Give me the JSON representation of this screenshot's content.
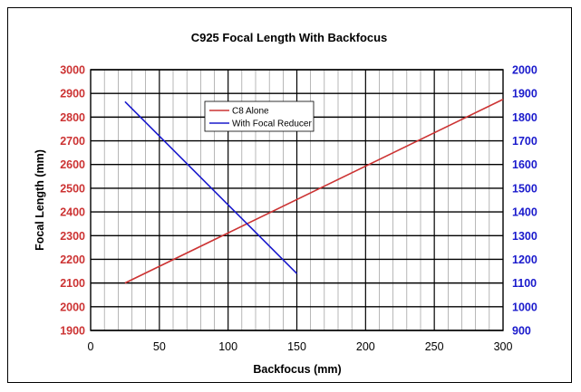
{
  "chart_data": {
    "type": "line",
    "title": "C925 Focal Length With Backfocus",
    "xlabel": "Backfocus (mm)",
    "ylabel": "Focal Length (mm)",
    "xlim": [
      0,
      300
    ],
    "ylim": [
      1900,
      3000
    ],
    "y2lim": [
      900,
      2000
    ],
    "x_ticks": [
      "0",
      "50",
      "100",
      "150",
      "200",
      "250",
      "300"
    ],
    "y_ticks": [
      "1900",
      "2000",
      "2100",
      "2200",
      "2300",
      "2400",
      "2500",
      "2600",
      "2700",
      "2800",
      "2900",
      "3000"
    ],
    "y2_ticks": [
      "900",
      "1000",
      "1100",
      "1200",
      "1300",
      "1400",
      "1500",
      "1600",
      "1700",
      "1800",
      "1900",
      "2000"
    ],
    "grid": true,
    "legend_position": "top-center",
    "colors": {
      "left_axis": "#cc3333",
      "right_axis": "#1a1acc",
      "frame": "#000000"
    },
    "series": [
      {
        "name": "C8 Alone",
        "axis": "left",
        "color": "#cc3333",
        "x": [
          25,
          300
        ],
        "y": [
          2100,
          2875
        ]
      },
      {
        "name": "With Focal Reducer",
        "axis": "right",
        "color": "#1a1acc",
        "x": [
          25,
          150
        ],
        "y": [
          1865,
          1140
        ]
      }
    ]
  }
}
